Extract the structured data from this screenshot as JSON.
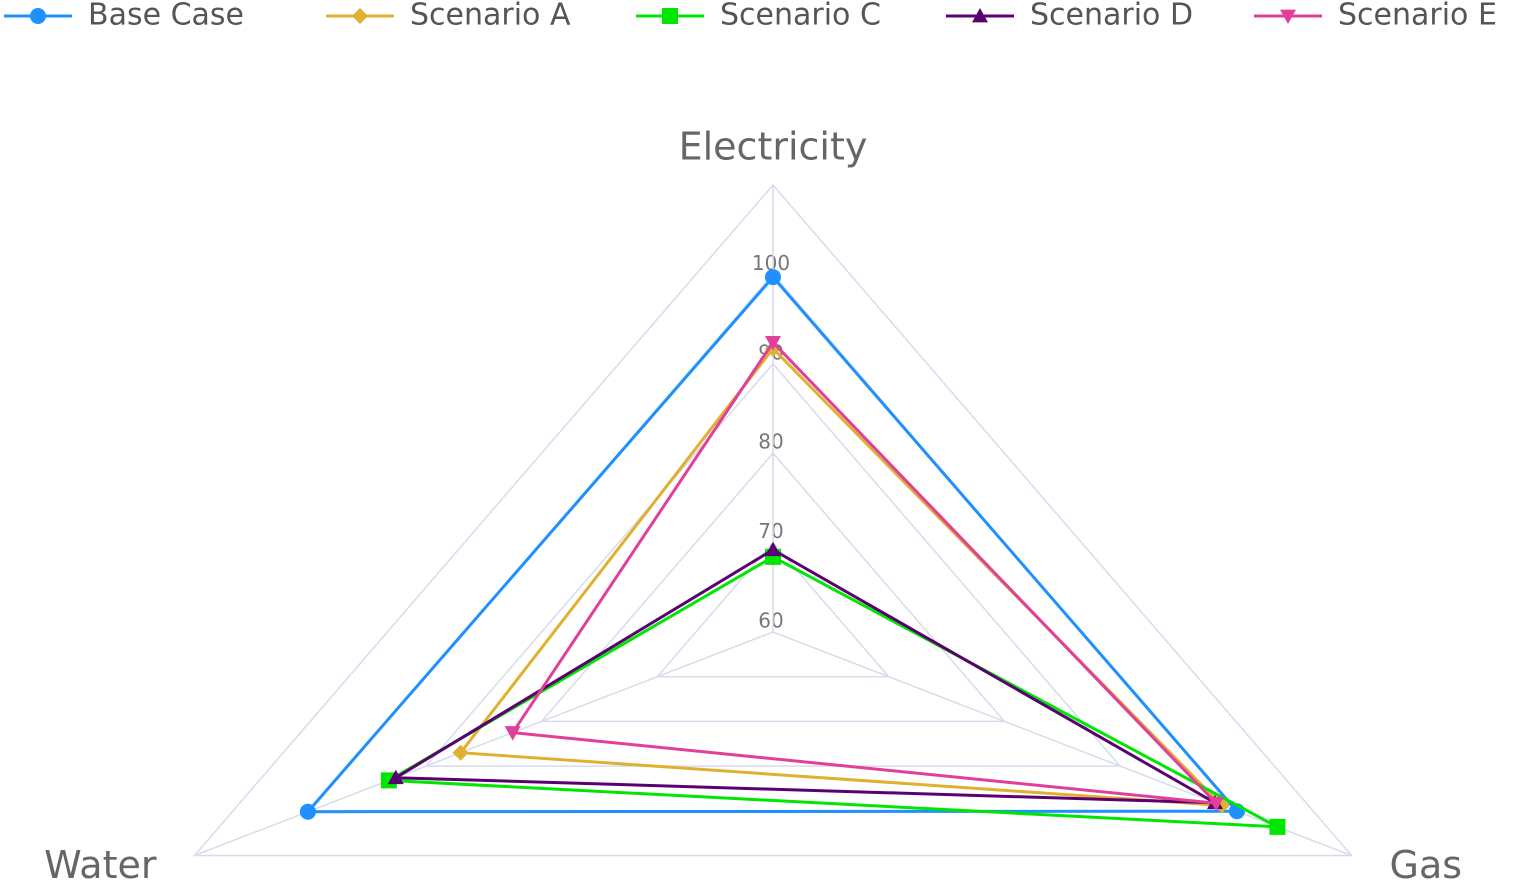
{
  "chart_data": {
    "type": "radar",
    "categories": [
      "Electricity",
      "Gas",
      "Water"
    ],
    "rlim": [
      60,
      110
    ],
    "rticks": [
      60,
      70,
      80,
      90,
      100
    ],
    "series": [
      {
        "name": "Base Case",
        "color": "#1e90ff",
        "marker": "circle",
        "values": [
          99.7,
          100.1,
          100.2
        ]
      },
      {
        "name": "Scenario A",
        "color": "#e0b030",
        "marker": "diamond",
        "values": [
          91.7,
          98.8,
          87.0
        ]
      },
      {
        "name": "Scenario C",
        "color": "#00e600",
        "marker": "square",
        "values": [
          68.4,
          103.6,
          93.2
        ]
      },
      {
        "name": "Scenario D",
        "color": "#5a0070",
        "marker": "triangle-up",
        "values": [
          69.2,
          98.2,
          92.6
        ]
      },
      {
        "name": "Scenario E",
        "color": "#e0409a",
        "marker": "triangle-down",
        "values": [
          92.4,
          98.3,
          82.5
        ]
      }
    ]
  }
}
